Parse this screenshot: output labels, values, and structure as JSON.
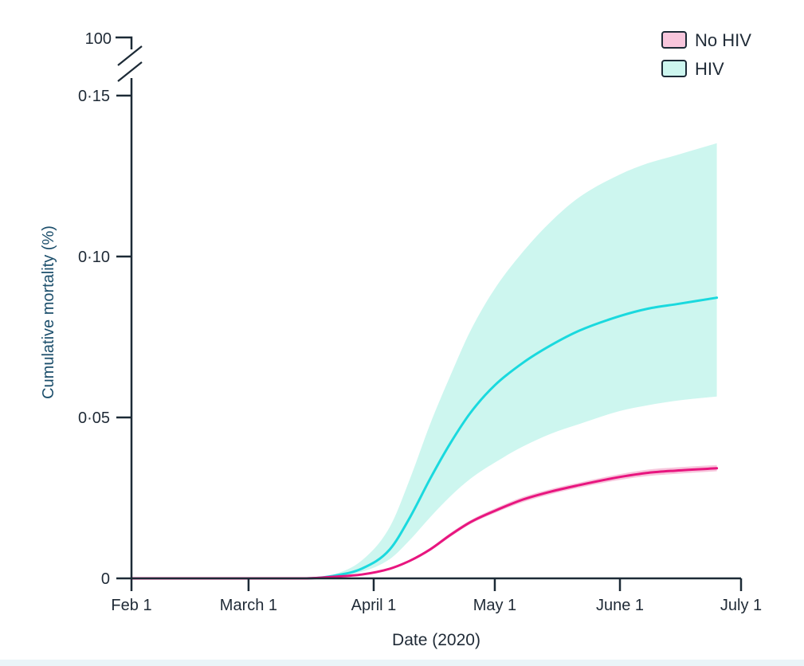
{
  "chart_data": {
    "type": "line",
    "xlabel": "Date (2020)",
    "ylabel": "Cumulative mortality (%)",
    "x_ticks": [
      "Feb 1",
      "March 1",
      "April 1",
      "May 1",
      "June 1",
      "July 1"
    ],
    "y_ticks": [
      "0",
      "0·05",
      "0·10",
      "0·15"
    ],
    "y_break_label": "100",
    "x_range": [
      "2020-02-01",
      "2020-07-01"
    ],
    "ylim": [
      0,
      0.15
    ],
    "grid": false,
    "legend_position": "top-right",
    "x": [
      "2020-02-01",
      "2020-03-01",
      "2020-03-15",
      "2020-03-22",
      "2020-03-29",
      "2020-04-05",
      "2020-04-10",
      "2020-04-15",
      "2020-04-20",
      "2020-04-25",
      "2020-05-01",
      "2020-05-08",
      "2020-05-15",
      "2020-05-22",
      "2020-06-01",
      "2020-06-08",
      "2020-06-15",
      "2020-06-25"
    ],
    "series": [
      {
        "name": "No HIV",
        "color": "#e8157f",
        "band_color": "#f7c6dc",
        "values": [
          0,
          0,
          0,
          0.0005,
          0.0012,
          0.003,
          0.0055,
          0.009,
          0.0135,
          0.0175,
          0.021,
          0.0245,
          0.027,
          0.029,
          0.0315,
          0.0328,
          0.0335,
          0.0342
        ],
        "lower": [
          0,
          0,
          0,
          0.0004,
          0.001,
          0.0027,
          0.0051,
          0.0085,
          0.0129,
          0.0169,
          0.0203,
          0.0237,
          0.0262,
          0.0282,
          0.0306,
          0.0318,
          0.0325,
          0.0333
        ],
        "upper": [
          0,
          0,
          0,
          0.0006,
          0.0014,
          0.0033,
          0.0059,
          0.0095,
          0.0141,
          0.0181,
          0.0217,
          0.0253,
          0.0278,
          0.0298,
          0.0324,
          0.0338,
          0.0345,
          0.0352
        ]
      },
      {
        "name": "HIV",
        "color": "#1ad9de",
        "band_color": "#cdf6ef",
        "values": [
          0,
          0,
          0,
          0.0008,
          0.003,
          0.009,
          0.019,
          0.031,
          0.042,
          0.0515,
          0.06,
          0.067,
          0.0725,
          0.077,
          0.0815,
          0.0838,
          0.0852,
          0.0872
        ],
        "lower": [
          0,
          0,
          0,
          0.0006,
          0.002,
          0.006,
          0.012,
          0.019,
          0.0255,
          0.031,
          0.036,
          0.041,
          0.045,
          0.048,
          0.052,
          0.0538,
          0.0552,
          0.0565
        ],
        "upper": [
          0,
          0,
          0,
          0.0012,
          0.0055,
          0.016,
          0.031,
          0.048,
          0.063,
          0.077,
          0.09,
          0.1015,
          0.111,
          0.1185,
          0.1255,
          0.129,
          0.1315,
          0.1352
        ]
      }
    ]
  }
}
